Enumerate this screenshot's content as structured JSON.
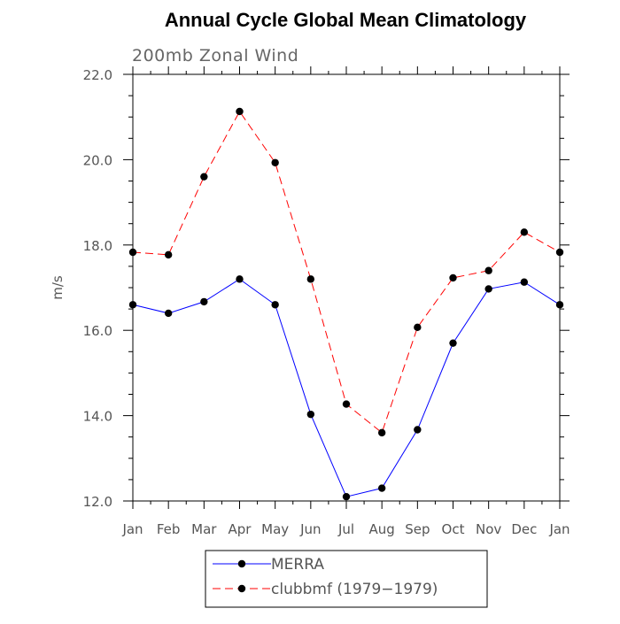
{
  "chart_data": {
    "type": "line",
    "title": "Annual Cycle Global Mean Climatology",
    "subtitle": "200mb Zonal Wind",
    "xlabel": "",
    "ylabel": "m/s",
    "categories": [
      "Jan",
      "Feb",
      "Mar",
      "Apr",
      "May",
      "Jun",
      "Jul",
      "Aug",
      "Sep",
      "Oct",
      "Nov",
      "Dec",
      "Jan"
    ],
    "ylim": [
      12.0,
      22.0
    ],
    "yticks": [
      "12.0",
      "14.0",
      "16.0",
      "18.0",
      "20.0",
      "22.0"
    ],
    "grid": false,
    "legend_position": "bottom",
    "series": [
      {
        "name": "MERRA",
        "color": "#0000ff",
        "style": "solid",
        "marker": "circle",
        "values": [
          16.6,
          16.4,
          16.67,
          17.2,
          16.6,
          14.03,
          12.1,
          12.3,
          13.67,
          15.7,
          16.97,
          17.13,
          16.6
        ]
      },
      {
        "name": "clubbmf (1979−1979)",
        "color": "#ff0000",
        "style": "dashed",
        "marker": "circle",
        "values": [
          17.83,
          17.77,
          19.6,
          21.13,
          19.93,
          17.2,
          14.27,
          13.6,
          16.07,
          17.23,
          17.4,
          18.3,
          17.83
        ]
      }
    ]
  }
}
